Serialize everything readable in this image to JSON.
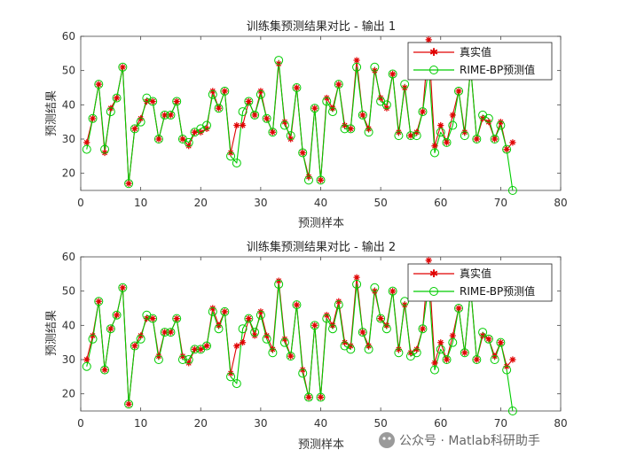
{
  "colors": {
    "truth": "#e00000",
    "pred": "#00cc00",
    "axis": "#444444"
  },
  "watermark": {
    "text": "公众号 · Matlab科研助手"
  },
  "chart_data": [
    {
      "type": "line",
      "title": "训练集预测结果对比 - 输出 1",
      "xlabel": "预测样本",
      "ylabel": "预测结果",
      "xlim": [
        0,
        80
      ],
      "ylim": [
        15,
        60
      ],
      "xticks": [
        0,
        10,
        20,
        30,
        40,
        50,
        60,
        70,
        80
      ],
      "yticks": [
        20,
        30,
        40,
        50,
        60
      ],
      "grid": false,
      "legend_position": "top-right",
      "series": [
        {
          "name": "真实值",
          "marker": "asterisk",
          "values": [
            29,
            36,
            46,
            26,
            39,
            42,
            51,
            17,
            33,
            36,
            41,
            41,
            30,
            37,
            37,
            41,
            30,
            28,
            32,
            32,
            33,
            44,
            39,
            44,
            26,
            34,
            34,
            41,
            37,
            44,
            36,
            32,
            52,
            35,
            30,
            45,
            26,
            19,
            39,
            18,
            42,
            39,
            46,
            34,
            33,
            53,
            37,
            33,
            50,
            42,
            39,
            49,
            32,
            45,
            31,
            32,
            38,
            59,
            28,
            34,
            29,
            37,
            44,
            32,
            51,
            30,
            36,
            35,
            30,
            35,
            27,
            29
          ]
        },
        {
          "name": "RIME-BP预测值",
          "marker": "circle",
          "values": [
            27,
            36,
            46,
            27,
            38,
            42,
            51,
            17,
            33,
            35,
            42,
            41,
            30,
            37,
            37,
            41,
            30,
            29,
            32,
            33,
            34,
            43,
            39,
            44,
            25,
            23,
            38,
            41,
            37,
            43,
            36,
            32,
            53,
            34,
            31,
            45,
            26,
            18,
            39,
            18,
            41,
            38,
            46,
            33,
            33,
            51,
            37,
            32,
            51,
            41,
            40,
            49,
            31,
            46,
            31,
            31,
            38,
            51,
            26,
            32,
            29,
            34,
            44,
            31,
            51,
            30,
            37,
            36,
            30,
            34,
            27,
            15
          ]
        }
      ]
    },
    {
      "type": "line",
      "title": "训练集预测结果对比 - 输出 2",
      "xlabel": "预测样本",
      "ylabel": "预测结果",
      "xlim": [
        0,
        80
      ],
      "ylim": [
        15,
        60
      ],
      "xticks": [
        0,
        10,
        20,
        30,
        40,
        50,
        60,
        70,
        80
      ],
      "yticks": [
        20,
        30,
        40,
        50,
        60
      ],
      "grid": false,
      "legend_position": "top-right",
      "series": [
        {
          "name": "真实值",
          "marker": "asterisk",
          "values": [
            30,
            37,
            47,
            27,
            39,
            43,
            51,
            17,
            34,
            37,
            42,
            42,
            31,
            38,
            38,
            42,
            31,
            29,
            33,
            33,
            34,
            45,
            40,
            44,
            26,
            34,
            35,
            42,
            37,
            44,
            37,
            33,
            53,
            36,
            31,
            46,
            27,
            19,
            40,
            19,
            43,
            40,
            47,
            35,
            34,
            54,
            38,
            34,
            50,
            42,
            40,
            50,
            33,
            46,
            32,
            33,
            39,
            59,
            29,
            35,
            30,
            37,
            45,
            32,
            51,
            30,
            37,
            36,
            31,
            35,
            28,
            30
          ]
        },
        {
          "name": "RIME-BP预测值",
          "marker": "circle",
          "values": [
            28,
            36,
            47,
            27,
            39,
            43,
            51,
            17,
            34,
            36,
            43,
            42,
            30,
            38,
            38,
            42,
            30,
            30,
            33,
            33,
            34,
            44,
            39,
            44,
            25,
            23,
            39,
            42,
            38,
            43,
            36,
            32,
            52,
            35,
            31,
            46,
            26,
            19,
            40,
            19,
            42,
            39,
            46,
            34,
            33,
            52,
            38,
            33,
            51,
            42,
            39,
            50,
            32,
            47,
            31,
            32,
            39,
            52,
            27,
            33,
            30,
            35,
            45,
            32,
            51,
            30,
            38,
            36,
            30,
            35,
            27,
            15
          ]
        }
      ]
    }
  ]
}
